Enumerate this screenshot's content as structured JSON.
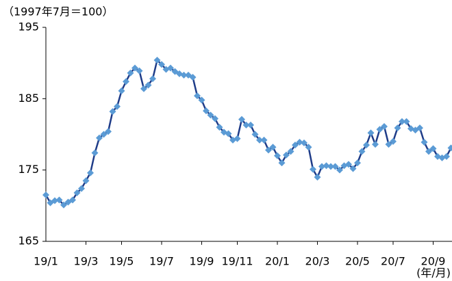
{
  "chart_data": {
    "type": "line",
    "annotations": [
      "（1997年7月＝100）",
      "(年/月)"
    ],
    "categories": [
      "19/1",
      null,
      null,
      null,
      null,
      null,
      null,
      null,
      null,
      "19/3",
      null,
      null,
      null,
      null,
      null,
      null,
      null,
      "19/5",
      null,
      null,
      null,
      null,
      null,
      null,
      null,
      null,
      "19/7",
      null,
      null,
      null,
      null,
      null,
      null,
      null,
      null,
      "19/9",
      null,
      null,
      null,
      null,
      null,
      null,
      null,
      "19/11",
      null,
      null,
      null,
      null,
      null,
      null,
      null,
      null,
      "20/1",
      null,
      null,
      null,
      null,
      null,
      null,
      null,
      null,
      "20/3",
      null,
      null,
      null,
      null,
      null,
      null,
      null,
      null,
      "20/5",
      null,
      null,
      null,
      null,
      null,
      null,
      null,
      "20/7",
      null,
      null,
      null,
      null,
      null,
      null,
      null,
      null,
      "20/9",
      null,
      null,
      null,
      null
    ],
    "series": [
      {
        "color": "#1f3c88",
        "marker_color": "#5b9bd5",
        "values": [
          171.5,
          170.4,
          170.7,
          170.8,
          170.1,
          170.5,
          170.8,
          171.8,
          172.4,
          173.5,
          174.6,
          177.4,
          179.5,
          180.0,
          180.4,
          183.2,
          183.9,
          186.1,
          187.4,
          188.6,
          189.3,
          188.9,
          186.4,
          186.9,
          187.8,
          190.4,
          189.8,
          189.1,
          189.3,
          188.8,
          188.5,
          188.3,
          188.3,
          188.0,
          185.4,
          184.8,
          183.3,
          182.7,
          182.2,
          181.0,
          180.3,
          180.1,
          179.2,
          179.4,
          182.1,
          181.3,
          181.3,
          180.0,
          179.2,
          179.2,
          177.8,
          178.2,
          177.0,
          176.0,
          177.1,
          177.6,
          178.5,
          178.9,
          178.8,
          178.2,
          175.1,
          174.0,
          175.5,
          175.6,
          175.5,
          175.5,
          175.0,
          175.6,
          175.8,
          175.2,
          176.0,
          177.6,
          178.5,
          180.2,
          178.6,
          180.7,
          181.1,
          178.6,
          179.0,
          180.9,
          181.8,
          181.8,
          180.8,
          180.6,
          180.9,
          178.9,
          177.6,
          178.0,
          176.9,
          176.7,
          176.9,
          178.1
        ]
      }
    ],
    "ylim": [
      165,
      195
    ],
    "yticks": [
      165,
      175,
      185,
      195
    ],
    "grid": false
  }
}
